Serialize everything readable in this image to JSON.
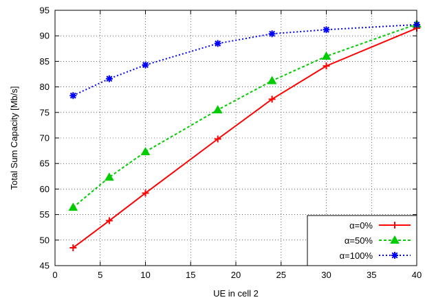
{
  "chart_data": {
    "type": "line",
    "xlabel": "UE in cell 2",
    "ylabel": "Total Sum Capacity [Mb/s]",
    "xlim": [
      0,
      40
    ],
    "ylim": [
      45,
      95
    ],
    "xticks": [
      0,
      5,
      10,
      15,
      20,
      25,
      30,
      35,
      40
    ],
    "yticks": [
      45,
      50,
      55,
      60,
      65,
      70,
      75,
      80,
      85,
      90,
      95
    ],
    "grid": true,
    "legend_position": "bottom-right",
    "series": [
      {
        "name": "α=0%",
        "color": "#ff0000",
        "line": "solid",
        "marker": "plus",
        "x": [
          2,
          6,
          10,
          18,
          24,
          30,
          40
        ],
        "y": [
          48.5,
          53.8,
          59.2,
          69.8,
          77.6,
          84.1,
          91.5
        ]
      },
      {
        "name": "α=50%",
        "color": "#00cc00",
        "line": "dashed",
        "marker": "triangle",
        "x": [
          2,
          6,
          10,
          18,
          24,
          30,
          40
        ],
        "y": [
          56.4,
          62.3,
          67.3,
          75.5,
          81.2,
          86.0,
          92.3
        ]
      },
      {
        "name": "α=100%",
        "color": "#0000ff",
        "line": "dotted",
        "marker": "star",
        "x": [
          2,
          6,
          10,
          18,
          24,
          30,
          40
        ],
        "y": [
          78.3,
          81.6,
          84.3,
          88.5,
          90.4,
          91.2,
          92.2
        ]
      }
    ]
  }
}
